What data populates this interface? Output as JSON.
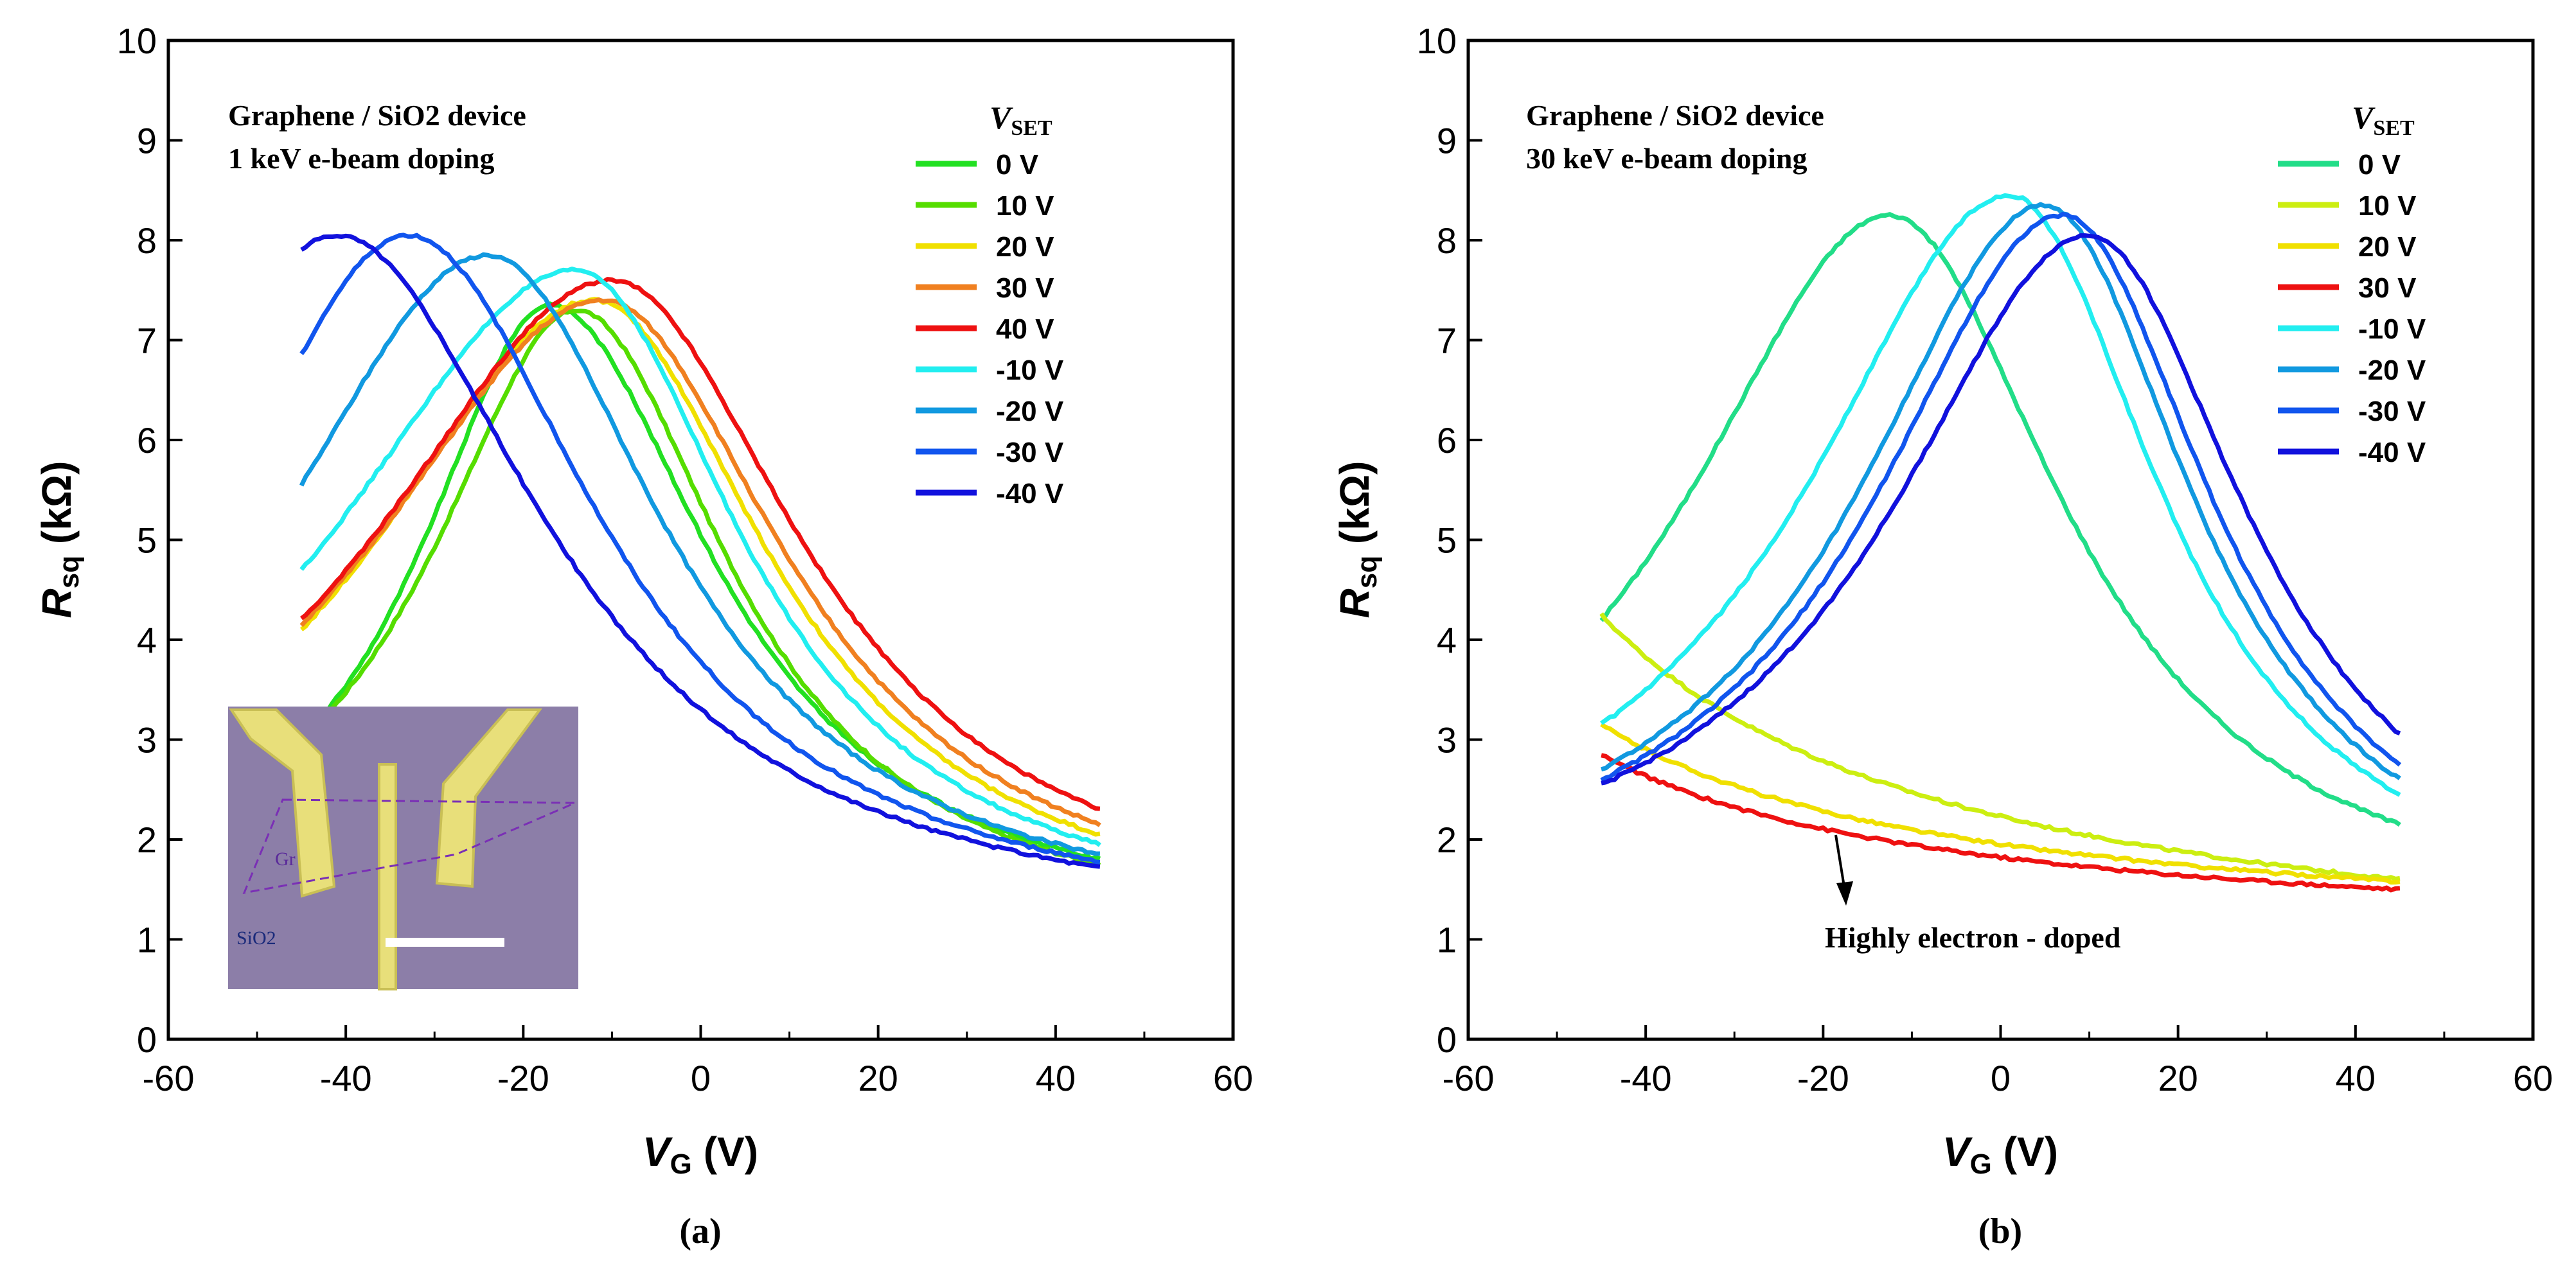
{
  "chart_data": [
    {
      "type": "line",
      "panel_label": "(a)",
      "annotation_lines": [
        "Graphene / SiO2 device",
        "1 keV e-beam doping"
      ],
      "xlabel": "V_G (V)",
      "ylabel": "R_sq (kΩ)",
      "xlim": [
        -60,
        60
      ],
      "ylim": [
        0,
        10
      ],
      "xticks": [
        -60,
        -40,
        -20,
        0,
        20,
        40,
        60
      ],
      "yticks": [
        0,
        1,
        2,
        3,
        4,
        5,
        6,
        7,
        8,
        9,
        10
      ],
      "legend_title": "V_SET",
      "legend_position": "top-right",
      "grid": false,
      "series": [
        {
          "name": "0 V",
          "color": "#22e022",
          "x_range": [
            -45,
            45
          ],
          "peak_x": -17,
          "peak_y": 7.35,
          "y_left": 3.0,
          "y_right": 1.8
        },
        {
          "name": "10 V",
          "color": "#55dd00",
          "x_range": [
            -45,
            45
          ],
          "peak_x": -14,
          "peak_y": 7.3,
          "y_left": 3.0,
          "y_right": 1.75
        },
        {
          "name": "20 V",
          "color": "#f0e000",
          "x_range": [
            -45,
            45
          ],
          "peak_x": -12,
          "peak_y": 7.4,
          "y_left": 4.1,
          "y_right": 2.05
        },
        {
          "name": "30 V",
          "color": "#f08020",
          "x_range": [
            -45,
            45
          ],
          "peak_x": -11,
          "peak_y": 7.4,
          "y_left": 4.15,
          "y_right": 2.15
        },
        {
          "name": "40 V",
          "color": "#ee1111",
          "x_range": [
            -45,
            45
          ],
          "peak_x": -10,
          "peak_y": 7.6,
          "y_left": 4.2,
          "y_right": 2.3
        },
        {
          "name": "-10 V",
          "color": "#22eef0",
          "x_range": [
            -45,
            45
          ],
          "peak_x": -14,
          "peak_y": 7.7,
          "y_left": 4.7,
          "y_right": 1.95
        },
        {
          "name": "-20 V",
          "color": "#1199e0",
          "x_range": [
            -45,
            45
          ],
          "peak_x": -24,
          "peak_y": 7.85,
          "y_left": 5.55,
          "y_right": 1.85
        },
        {
          "name": "-30 V",
          "color": "#1155ee",
          "x_range": [
            -45,
            45
          ],
          "peak_x": -33,
          "peak_y": 8.05,
          "y_left": 6.85,
          "y_right": 1.78
        },
        {
          "name": "-40 V",
          "color": "#1111dd",
          "x_range": [
            -45,
            45
          ],
          "peak_x": -41,
          "peak_y": 8.05,
          "y_left": 7.9,
          "y_right": 1.72
        }
      ],
      "inset": {
        "labels": [
          "Gr",
          "SiO2"
        ]
      }
    },
    {
      "type": "line",
      "panel_label": "(b)",
      "annotation_lines": [
        "Graphene / SiO2 device",
        "30 keV e-beam doping"
      ],
      "callout": "Highly electron - doped",
      "xlabel": "V_G (V)",
      "ylabel": "R_sq (kΩ)",
      "xlim": [
        -60,
        60
      ],
      "ylim": [
        0,
        10
      ],
      "xticks": [
        -60,
        -40,
        -20,
        0,
        20,
        40,
        60
      ],
      "yticks": [
        0,
        1,
        2,
        3,
        4,
        5,
        6,
        7,
        8,
        9,
        10
      ],
      "legend_title": "V_SET",
      "legend_position": "top-right",
      "grid": false,
      "series": [
        {
          "name": "0 V",
          "color": "#22dd88",
          "x_range": [
            -45,
            45
          ],
          "peak_x": -12.5,
          "peak_y": 8.25,
          "y_left": 4.2,
          "y_right": 2.15
        },
        {
          "name": "10 V",
          "color": "#ccee11",
          "x_range": [
            -45,
            45
          ],
          "peak_x": null,
          "peak_y": null,
          "y_left": 4.25,
          "y_right": 1.6
        },
        {
          "name": "20 V",
          "color": "#f0e000",
          "x_range": [
            -45,
            45
          ],
          "peak_x": null,
          "peak_y": null,
          "y_left": 3.15,
          "y_right": 1.58
        },
        {
          "name": "30 V",
          "color": "#ee1111",
          "x_range": [
            -45,
            45
          ],
          "peak_x": null,
          "peak_y": null,
          "y_left": 2.85,
          "y_right": 1.5
        },
        {
          "name": "-10 V",
          "color": "#22eef0",
          "x_range": [
            -45,
            45
          ],
          "peak_x": 1,
          "peak_y": 8.45,
          "y_left": 3.15,
          "y_right": 2.45
        },
        {
          "name": "-20 V",
          "color": "#1199e0",
          "x_range": [
            -45,
            45
          ],
          "peak_x": 5,
          "peak_y": 8.35,
          "y_left": 2.7,
          "y_right": 2.6
        },
        {
          "name": "-30 V",
          "color": "#1155ee",
          "x_range": [
            -45,
            45
          ],
          "peak_x": 7,
          "peak_y": 8.25,
          "y_left": 2.6,
          "y_right": 2.75
        },
        {
          "name": "-40 V",
          "color": "#1111dd",
          "x_range": [
            -45,
            45
          ],
          "peak_x": 10,
          "peak_y": 8.05,
          "y_left": 2.55,
          "y_right": 3.05
        }
      ]
    }
  ]
}
